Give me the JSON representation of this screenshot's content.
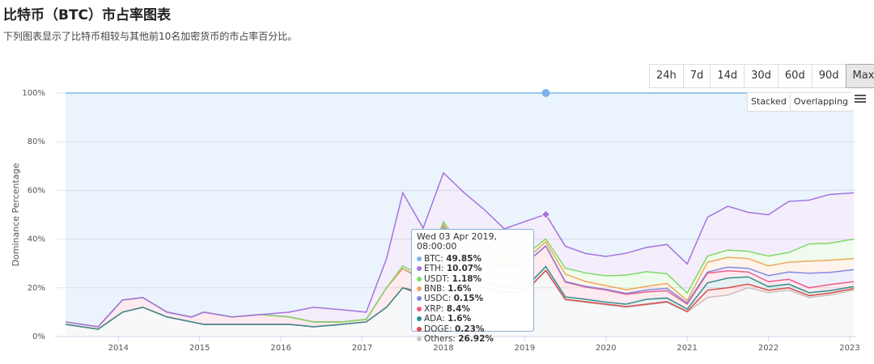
{
  "page": {
    "title": "比特币（BTC）市占率图表",
    "subtitle": "下列图表显示了比特币相较与其他前10名加密货币的市占率百分比。",
    "ranges": [
      "24h",
      "7d",
      "14d",
      "30d",
      "60d",
      "90d",
      "Max"
    ],
    "active_range": "Max",
    "modes": [
      "Stacked",
      "Overlapping"
    ]
  },
  "chart_data": {
    "type": "stacked-area",
    "ylabel": "Dominance Percentage",
    "x": [
      2013.35,
      2013.75,
      2014.05,
      2014.3,
      2014.6,
      2014.9,
      2015.05,
      2015.4,
      2015.75,
      2016.1,
      2016.4,
      2016.75,
      2017.05,
      2017.3,
      2017.5,
      2017.75,
      2018.0,
      2018.25,
      2018.5,
      2018.75,
      2019.0,
      2019.26,
      2019.5,
      2019.75,
      2020.0,
      2020.25,
      2020.5,
      2020.75,
      2021.0,
      2021.25,
      2021.5,
      2021.75,
      2022.0,
      2022.25,
      2022.5,
      2022.75,
      2023.05
    ],
    "xlim": [
      2013.22,
      2023.08
    ],
    "xticks": [
      2014,
      2015,
      2016,
      2017,
      2018,
      2019,
      2020,
      2021,
      2022,
      2023
    ],
    "ylim": [
      0,
      100
    ],
    "yticks": [
      {
        "value": 0,
        "label": "0%"
      },
      {
        "value": 20,
        "label": "20%"
      },
      {
        "value": 40,
        "label": "40%"
      },
      {
        "value": 60,
        "label": "60%"
      },
      {
        "value": 80,
        "label": "80%"
      },
      {
        "value": 100,
        "label": "100%"
      }
    ],
    "grid": true,
    "tooltip_title": "Wed 03 Apr 2019, 08:00:00",
    "series": [
      {
        "name": "BTC",
        "color": "#7cb5ec",
        "values": [
          94,
          96,
          85,
          84,
          90,
          92,
          90,
          92,
          91,
          90,
          88,
          89,
          90,
          68,
          41,
          55.5,
          32.8,
          40.8,
          47.8,
          55.8,
          52.8,
          49.85,
          62.9,
          65.9,
          67.1,
          65.8,
          63.4,
          62.2,
          70.2,
          51,
          46.5,
          49,
          50,
          44.5,
          44,
          41.7,
          41
        ],
        "value_labels": [
          null,
          null,
          null,
          null,
          null,
          null,
          null,
          null,
          null,
          null,
          null,
          null,
          null,
          null,
          null,
          null,
          null,
          null,
          null,
          null,
          null,
          "49.85%",
          null,
          null,
          null,
          null,
          null,
          null,
          null,
          null,
          null,
          null,
          null,
          null,
          null,
          null,
          null
        ]
      },
      {
        "name": "ETH",
        "color": "#a76fe0",
        "values": [
          0,
          0,
          0,
          0,
          0,
          0,
          0,
          0,
          0,
          2,
          6,
          5,
          3,
          12,
          30,
          20,
          20,
          24,
          18,
          12,
          14,
          10.07,
          9,
          8,
          8,
          9,
          10,
          12,
          12,
          16,
          18,
          16,
          17,
          21,
          18,
          20,
          19
        ],
        "value_labels": [
          null,
          null,
          null,
          null,
          null,
          null,
          null,
          null,
          null,
          null,
          null,
          null,
          null,
          null,
          null,
          null,
          null,
          null,
          null,
          null,
          null,
          "10.07%",
          null,
          null,
          null,
          null,
          null,
          null,
          null,
          null,
          null,
          null,
          null,
          null,
          null,
          null,
          null
        ]
      },
      {
        "name": "USDT",
        "color": "#7ee063",
        "values": [
          0,
          0,
          0,
          0,
          0,
          0,
          0,
          0,
          0,
          0,
          0,
          0,
          0,
          0,
          1,
          1,
          1,
          2,
          2,
          2,
          2,
          1.18,
          2.5,
          3.5,
          4,
          6,
          6,
          4,
          3,
          2.5,
          3,
          3,
          4,
          4,
          7,
          7,
          8
        ],
        "value_labels": [
          null,
          null,
          null,
          null,
          null,
          null,
          null,
          null,
          null,
          null,
          null,
          null,
          null,
          null,
          null,
          null,
          null,
          null,
          null,
          null,
          null,
          "1.18%",
          null,
          null,
          null,
          null,
          null,
          null,
          null,
          null,
          null,
          null,
          null,
          null,
          null,
          null,
          null
        ]
      },
      {
        "name": "BNB",
        "color": "#f7a35c",
        "values": [
          0,
          0,
          0,
          0,
          0,
          0,
          0,
          0,
          0,
          0,
          0,
          0,
          0,
          0,
          0,
          0.5,
          1,
          1,
          2,
          1,
          1.5,
          1.6,
          3,
          2,
          1.5,
          1.5,
          1.5,
          2,
          1,
          4,
          4,
          4,
          4,
          4,
          5,
          5,
          4.5
        ],
        "value_labels": [
          null,
          null,
          null,
          null,
          null,
          null,
          null,
          null,
          null,
          null,
          null,
          null,
          null,
          null,
          null,
          null,
          null,
          null,
          null,
          null,
          null,
          "1.6%",
          null,
          null,
          null,
          null,
          null,
          null,
          null,
          null,
          null,
          null,
          null,
          null,
          null,
          null,
          null
        ]
      },
      {
        "name": "USDC",
        "color": "#8085e9",
        "values": [
          0,
          0,
          0,
          0,
          0,
          0,
          0,
          0,
          0,
          0,
          0,
          0,
          0,
          0,
          0,
          0,
          0,
          0,
          0,
          0,
          0,
          0.15,
          0.3,
          0.3,
          0.3,
          0.4,
          0.8,
          1,
          0.5,
          0.5,
          1.5,
          1.5,
          2.5,
          3,
          6,
          5,
          5
        ],
        "value_labels": [
          null,
          null,
          null,
          null,
          null,
          null,
          null,
          null,
          null,
          null,
          null,
          null,
          null,
          null,
          null,
          null,
          null,
          null,
          null,
          null,
          null,
          "0.15%",
          null,
          null,
          null,
          null,
          null,
          null,
          null,
          null,
          null,
          null,
          null,
          null,
          null,
          null,
          null
        ]
      },
      {
        "name": "XRP",
        "color": "#f15c80",
        "values": [
          1,
          1,
          5,
          4,
          2,
          2,
          5,
          3,
          4,
          3,
          2,
          1,
          1,
          8,
          8,
          5,
          15,
          7,
          8,
          9,
          10,
          8.4,
          6,
          5,
          5,
          4,
          3,
          3,
          2,
          4,
          3,
          2,
          2,
          2,
          2,
          2.5,
          2
        ],
        "value_labels": [
          null,
          null,
          null,
          null,
          null,
          null,
          null,
          null,
          null,
          null,
          null,
          null,
          null,
          null,
          null,
          null,
          null,
          null,
          null,
          null,
          null,
          "8.4%",
          null,
          null,
          null,
          null,
          null,
          null,
          null,
          null,
          null,
          null,
          null,
          null,
          null,
          null,
          null
        ]
      },
      {
        "name": "ADA",
        "color": "#2b908f",
        "values": [
          0,
          0,
          0,
          0,
          0,
          0,
          0,
          0,
          0,
          0,
          0,
          0,
          0,
          0,
          0,
          1,
          5,
          3,
          2,
          2,
          1.5,
          1.6,
          1,
          1,
          0.8,
          1,
          2,
          1.5,
          1,
          3,
          4,
          3,
          1.5,
          1.5,
          1.2,
          1,
          0.8
        ],
        "value_labels": [
          null,
          null,
          null,
          null,
          null,
          null,
          null,
          null,
          null,
          null,
          null,
          null,
          null,
          null,
          null,
          null,
          null,
          null,
          null,
          null,
          null,
          "1.6%",
          null,
          null,
          null,
          null,
          null,
          null,
          null,
          null,
          null,
          null,
          null,
          null,
          null,
          null,
          null
        ]
      },
      {
        "name": "DOGE",
        "color": "#e4484b",
        "values": [
          0,
          0,
          0,
          0,
          0,
          0,
          0,
          0,
          0,
          0,
          0,
          0,
          0,
          0,
          0,
          0,
          0.2,
          0.2,
          0.2,
          0.2,
          0.2,
          0.23,
          0.3,
          0.3,
          0.3,
          0.3,
          0.3,
          0.3,
          0.3,
          3,
          3,
          1.5,
          1,
          1,
          0.8,
          0.8,
          0.7
        ],
        "value_labels": [
          null,
          null,
          null,
          null,
          null,
          null,
          null,
          null,
          null,
          null,
          null,
          null,
          null,
          null,
          null,
          null,
          null,
          null,
          null,
          null,
          null,
          "0.23%",
          null,
          null,
          null,
          null,
          null,
          null,
          null,
          null,
          null,
          null,
          null,
          null,
          null,
          null,
          null
        ]
      },
      {
        "name": "Others",
        "color": "#c8c8c8",
        "values": [
          5,
          3,
          10,
          12,
          8,
          6,
          5,
          5,
          5,
          5,
          4,
          5,
          6,
          12,
          20,
          17,
          25,
          22,
          20,
          18,
          18,
          26.92,
          15,
          14,
          13,
          12,
          13,
          14,
          10,
          16,
          17,
          20,
          18,
          19,
          16,
          17,
          19
        ],
        "value_labels": [
          null,
          null,
          null,
          null,
          null,
          null,
          null,
          null,
          null,
          null,
          null,
          null,
          null,
          null,
          null,
          null,
          null,
          null,
          null,
          null,
          null,
          "26.92%",
          null,
          null,
          null,
          null,
          null,
          null,
          null,
          null,
          null,
          null,
          null,
          null,
          null,
          null,
          null
        ]
      }
    ]
  }
}
